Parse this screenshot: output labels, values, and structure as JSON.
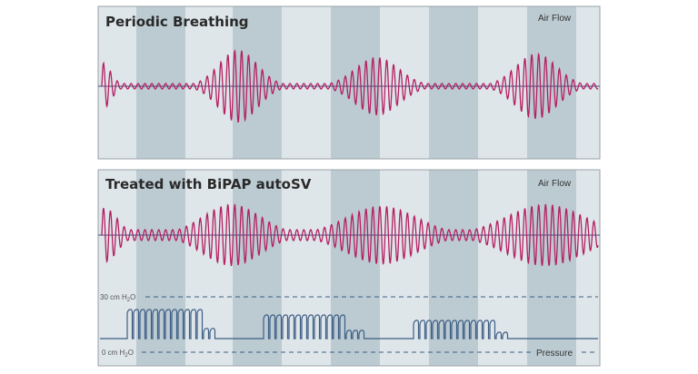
{
  "colors": {
    "panel_light": "#dfe6ea",
    "panel_dark": "#bccbd2",
    "border": "#9aa3a8",
    "airflow": "#b51f63",
    "baseline": "#3a4f7a",
    "pressure": "#3d5d84",
    "dash": "#3d5d84"
  },
  "top_panel": {
    "title": "Periodic Breathing",
    "trace_label": "Air Flow"
  },
  "bottom_panel": {
    "title": "Treated with BiPAP autoSV",
    "trace_label": "Air Flow",
    "pressure_label": "Pressure",
    "pressure_high": {
      "value": "30 cm H",
      "sub": "2",
      "tail": "O"
    },
    "pressure_low": {
      "value": "0 cm H",
      "sub": "2",
      "tail": "O"
    }
  }
}
